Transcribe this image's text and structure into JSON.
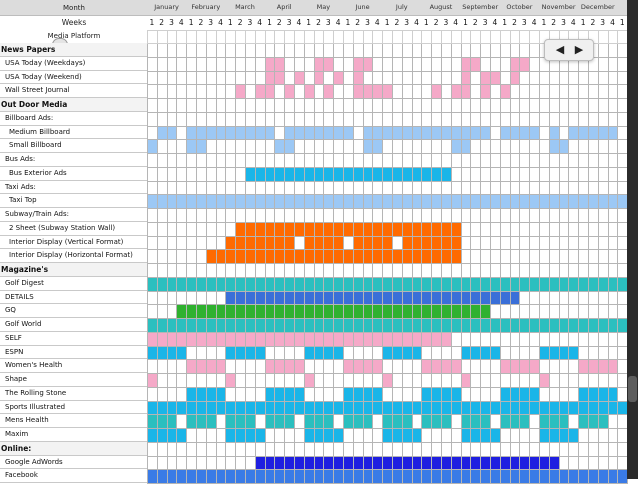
{
  "header": {
    "month_label": "Month",
    "weeks_label": "Weeks",
    "platform_label": "Media Platform",
    "months": [
      "January",
      "February",
      "March",
      "April",
      "May",
      "June",
      "July",
      "August",
      "September",
      "October",
      "November",
      "December"
    ],
    "week_numbers": [
      "1",
      "2",
      "3",
      "4"
    ]
  },
  "colors": {
    "pink": "#f5a9c8",
    "lightblue": "#9cc8f5",
    "cyan": "#1ab5e8",
    "orange": "#ff6a00",
    "teal": "#2bbfbf",
    "blue": "#3a6fd8",
    "green": "#2fb12f",
    "royal": "#1f1fe0",
    "midblue": "#3a7be6"
  },
  "rows": [
    {
      "label": "News Papers",
      "kind": "section"
    },
    {
      "label": "USA Today (Weekdays)",
      "kind": "item"
    },
    {
      "label": "USA Today (Weekend)",
      "kind": "item"
    },
    {
      "label": "Wall Street Journal",
      "kind": "item"
    },
    {
      "label": "Out Door Media",
      "kind": "section"
    },
    {
      "label": "Billboard Ads:",
      "kind": "item"
    },
    {
      "label": "Medium Billboard",
      "kind": "indent"
    },
    {
      "label": "Small Billboard",
      "kind": "indent"
    },
    {
      "label": "Bus Ads:",
      "kind": "item"
    },
    {
      "label": "Bus Exterior Ads",
      "kind": "indent"
    },
    {
      "label": "Taxi Ads:",
      "kind": "item"
    },
    {
      "label": "Taxi Top",
      "kind": "indent"
    },
    {
      "label": "Subway/Train Ads:",
      "kind": "item"
    },
    {
      "label": "2 Sheet (Subway Station Wall)",
      "kind": "indent"
    },
    {
      "label": "Interior Display (Vertical Format)",
      "kind": "indent"
    },
    {
      "label": "Interior Display (Horizontal Format)",
      "kind": "indent"
    },
    {
      "label": "Magazine's",
      "kind": "section"
    },
    {
      "label": "Golf Digest",
      "kind": "item"
    },
    {
      "label": "DETAILS",
      "kind": "item"
    },
    {
      "label": "GQ",
      "kind": "item"
    },
    {
      "label": "Golf World",
      "kind": "item"
    },
    {
      "label": "SELF",
      "kind": "item"
    },
    {
      "label": "ESPN",
      "kind": "item"
    },
    {
      "label": "Women's Health",
      "kind": "item"
    },
    {
      "label": "Shape",
      "kind": "item"
    },
    {
      "label": "The Rolling Stone",
      "kind": "item"
    },
    {
      "label": "Sports Illustrated",
      "kind": "item"
    },
    {
      "label": "Mens Health",
      "kind": "item"
    },
    {
      "label": "Maxim",
      "kind": "item"
    },
    {
      "label": "Online:",
      "kind": "section"
    },
    {
      "label": "Google AdWords",
      "kind": "item"
    },
    {
      "label": "Facebook",
      "kind": "item"
    }
  ],
  "schedule": [
    {
      "row": 1,
      "color": "pink",
      "ranges": [
        [
          12,
          13
        ],
        [
          17,
          18
        ],
        [
          21,
          22
        ],
        [
          32,
          33
        ],
        [
          37,
          38
        ]
      ]
    },
    {
      "row": 2,
      "color": "pink",
      "ranges": [
        [
          12,
          13
        ],
        [
          15,
          15
        ],
        [
          17,
          17
        ],
        [
          19,
          19
        ],
        [
          21,
          21
        ],
        [
          32,
          32
        ],
        [
          34,
          35
        ],
        [
          37,
          37
        ]
      ]
    },
    {
      "row": 3,
      "color": "pink",
      "ranges": [
        [
          9,
          9
        ],
        [
          11,
          12
        ],
        [
          14,
          14
        ],
        [
          16,
          16
        ],
        [
          18,
          18
        ],
        [
          21,
          24
        ],
        [
          29,
          29
        ],
        [
          31,
          32
        ],
        [
          34,
          34
        ],
        [
          36,
          36
        ]
      ]
    },
    {
      "row": 6,
      "color": "lightblue",
      "ranges": [
        [
          1,
          2
        ],
        [
          4,
          12
        ],
        [
          14,
          20
        ],
        [
          22,
          34
        ],
        [
          36,
          39
        ],
        [
          41,
          41
        ],
        [
          43,
          47
        ]
      ]
    },
    {
      "row": 7,
      "color": "lightblue",
      "ranges": [
        [
          0,
          0
        ],
        [
          4,
          5
        ],
        [
          13,
          14
        ],
        [
          22,
          23
        ],
        [
          31,
          32
        ],
        [
          41,
          42
        ]
      ]
    },
    {
      "row": 9,
      "color": "cyan",
      "ranges": [
        [
          10,
          30
        ]
      ]
    },
    {
      "row": 11,
      "color": "lightblue",
      "ranges": [
        [
          0,
          48
        ]
      ]
    },
    {
      "row": 13,
      "color": "orange",
      "ranges": [
        [
          9,
          31
        ]
      ]
    },
    {
      "row": 14,
      "color": "orange",
      "ranges": [
        [
          8,
          14
        ],
        [
          16,
          19
        ],
        [
          21,
          24
        ],
        [
          26,
          31
        ]
      ]
    },
    {
      "row": 15,
      "color": "orange",
      "ranges": [
        [
          6,
          31
        ]
      ]
    },
    {
      "row": 17,
      "color": "teal",
      "ranges": [
        [
          0,
          48
        ]
      ]
    },
    {
      "row": 18,
      "color": "blue",
      "ranges": [
        [
          8,
          37
        ]
      ]
    },
    {
      "row": 19,
      "color": "green",
      "ranges": [
        [
          3,
          34
        ]
      ]
    },
    {
      "row": 20,
      "color": "teal",
      "ranges": [
        [
          0,
          48
        ]
      ]
    },
    {
      "row": 21,
      "color": "pink",
      "ranges": [
        [
          0,
          30
        ]
      ]
    },
    {
      "row": 22,
      "color": "cyan",
      "ranges": [
        [
          0,
          3
        ],
        [
          8,
          11
        ],
        [
          16,
          19
        ],
        [
          24,
          27
        ],
        [
          32,
          35
        ],
        [
          40,
          43
        ]
      ]
    },
    {
      "row": 23,
      "color": "pink",
      "ranges": [
        [
          4,
          7
        ],
        [
          12,
          15
        ],
        [
          20,
          23
        ],
        [
          28,
          31
        ],
        [
          36,
          39
        ],
        [
          44,
          47
        ]
      ]
    },
    {
      "row": 24,
      "color": "pink",
      "ranges": [
        [
          0,
          0
        ],
        [
          8,
          8
        ],
        [
          16,
          16
        ],
        [
          24,
          24
        ],
        [
          32,
          32
        ],
        [
          40,
          40
        ]
      ]
    },
    {
      "row": 25,
      "color": "cyan",
      "ranges": [
        [
          4,
          7
        ],
        [
          12,
          15
        ],
        [
          20,
          23
        ],
        [
          28,
          31
        ],
        [
          36,
          39
        ],
        [
          44,
          47
        ]
      ]
    },
    {
      "row": 26,
      "color": "cyan",
      "ranges": [
        [
          0,
          48
        ]
      ]
    },
    {
      "row": 27,
      "color": "teal",
      "ranges": [
        [
          0,
          2
        ],
        [
          4,
          6
        ],
        [
          8,
          10
        ],
        [
          12,
          14
        ],
        [
          16,
          18
        ],
        [
          20,
          22
        ],
        [
          24,
          26
        ],
        [
          28,
          30
        ],
        [
          32,
          34
        ],
        [
          36,
          38
        ],
        [
          40,
          42
        ],
        [
          44,
          46
        ]
      ]
    },
    {
      "row": 28,
      "color": "cyan",
      "ranges": [
        [
          0,
          3
        ],
        [
          8,
          11
        ],
        [
          16,
          19
        ],
        [
          24,
          27
        ],
        [
          32,
          35
        ],
        [
          40,
          43
        ]
      ]
    },
    {
      "row": 30,
      "color": "royal",
      "ranges": [
        [
          11,
          41
        ]
      ]
    },
    {
      "row": 31,
      "color": "midblue",
      "ranges": [
        [
          0,
          48
        ]
      ]
    }
  ],
  "nav": {
    "prev_icon": "left-arrow-icon",
    "next_icon": "right-arrow-icon"
  }
}
